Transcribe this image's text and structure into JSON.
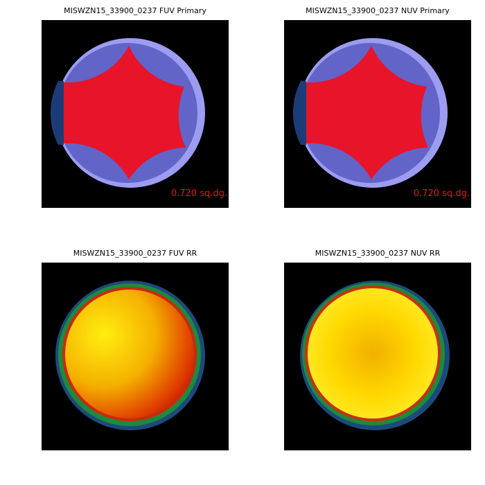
{
  "panels": [
    {
      "title": "MISWZN15_33900_0237 FUV Primary",
      "label": "0.720 sq.dg."
    },
    {
      "title": "MISWZN15_33900_0237 NUV Primary",
      "label": "0.720 sq.dg."
    },
    {
      "title": "MISWZN15_33900_0237 FUV RR"
    },
    {
      "title": "MISWZN15_33900_0237 NUV RR"
    }
  ]
}
